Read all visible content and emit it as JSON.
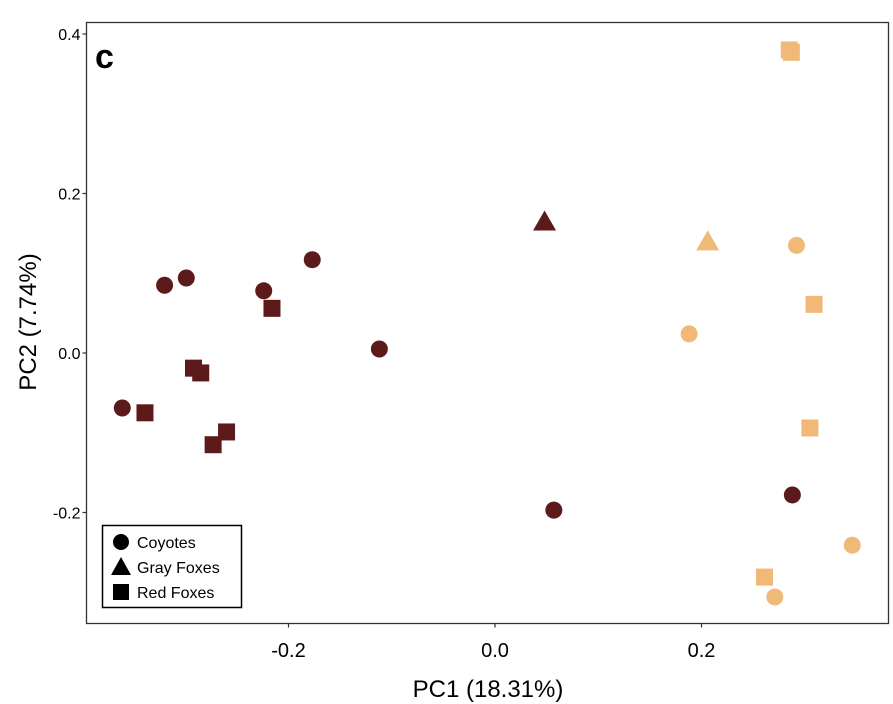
{
  "chart_data": {
    "type": "scatter",
    "panel_label": "c",
    "title": "",
    "xlabel": "PC1 (18.31%)",
    "ylabel": "PC2 (7.74%)",
    "xlim": [
      -0.38,
      0.38
    ],
    "ylim": [
      -0.34,
      0.415
    ],
    "xticks": [
      -0.2,
      0.0,
      0.2
    ],
    "xtick_labels": [
      "-0.2",
      "0.0",
      "0.2"
    ],
    "yticks": [
      -0.2,
      0.0,
      0.2,
      0.4
    ],
    "ytick_labels": [
      "-0.2",
      "0.0",
      "0.2",
      "0.4"
    ],
    "grid": false,
    "legend": {
      "placement": "bottom-left",
      "entries": [
        {
          "label": "Coyotes",
          "shape": "circle"
        },
        {
          "label": "Gray Foxes",
          "shape": "triangle"
        },
        {
          "label": "Red Foxes",
          "shape": "square"
        }
      ]
    },
    "colors": {
      "group_dark": "#5c1a1a",
      "group_light": "#f0b978"
    },
    "series": [
      {
        "name": "Coyotes",
        "shape": "circle",
        "points": [
          {
            "x": -0.361,
            "y": -0.069,
            "color": "group_dark"
          },
          {
            "x": -0.32,
            "y": 0.085,
            "color": "group_dark"
          },
          {
            "x": -0.299,
            "y": 0.094,
            "color": "group_dark"
          },
          {
            "x": -0.224,
            "y": 0.078,
            "color": "group_dark"
          },
          {
            "x": -0.177,
            "y": 0.117,
            "color": "group_dark"
          },
          {
            "x": -0.112,
            "y": 0.005,
            "color": "group_dark"
          },
          {
            "x": 0.057,
            "y": -0.197,
            "color": "group_dark"
          },
          {
            "x": 0.288,
            "y": -0.178,
            "color": "group_dark"
          },
          {
            "x": 0.292,
            "y": 0.135,
            "color": "group_light"
          },
          {
            "x": 0.188,
            "y": 0.024,
            "color": "group_light"
          },
          {
            "x": 0.346,
            "y": -0.241,
            "color": "group_light"
          },
          {
            "x": 0.271,
            "y": -0.306,
            "color": "group_light"
          }
        ]
      },
      {
        "name": "Gray Foxes",
        "shape": "triangle",
        "points": [
          {
            "x": 0.048,
            "y": 0.162,
            "color": "group_dark"
          },
          {
            "x": 0.206,
            "y": 0.137,
            "color": "group_light"
          }
        ]
      },
      {
        "name": "Red Foxes",
        "shape": "square",
        "points": [
          {
            "x": -0.339,
            "y": -0.075,
            "color": "group_dark"
          },
          {
            "x": -0.216,
            "y": 0.056,
            "color": "group_dark"
          },
          {
            "x": -0.292,
            "y": -0.019,
            "color": "group_dark"
          },
          {
            "x": -0.285,
            "y": -0.025,
            "color": "group_dark"
          },
          {
            "x": -0.26,
            "y": -0.099,
            "color": "group_dark"
          },
          {
            "x": -0.273,
            "y": -0.115,
            "color": "group_dark"
          },
          {
            "x": 0.285,
            "y": 0.38,
            "color": "group_light"
          },
          {
            "x": 0.287,
            "y": 0.377,
            "color": "group_light"
          },
          {
            "x": 0.309,
            "y": 0.061,
            "color": "group_light"
          },
          {
            "x": 0.305,
            "y": -0.094,
            "color": "group_light"
          },
          {
            "x": 0.261,
            "y": -0.281,
            "color": "group_light"
          }
        ]
      }
    ]
  }
}
